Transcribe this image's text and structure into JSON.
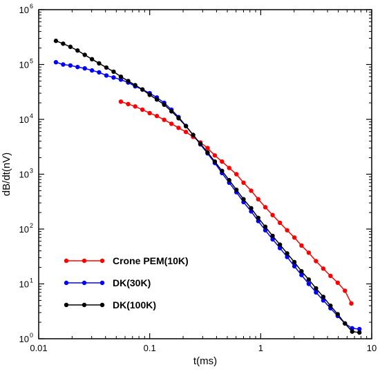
{
  "chart_data": {
    "type": "line",
    "xlabel": "t(ms)",
    "ylabel": "dB/dt(nV)",
    "xscale": "log",
    "yscale": "log",
    "xlim": [
      0.01,
      10
    ],
    "ylim": [
      1,
      1000000
    ],
    "x_ticks": [
      {
        "value": 0.01,
        "label": "0.01"
      },
      {
        "value": 0.1,
        "label": "0.1"
      },
      {
        "value": 1,
        "label": "1"
      },
      {
        "value": 10,
        "label": "10"
      }
    ],
    "y_ticks": [
      {
        "value": 1,
        "base": "10",
        "exp": "0"
      },
      {
        "value": 10,
        "base": "10",
        "exp": "1"
      },
      {
        "value": 100,
        "base": "10",
        "exp": "2"
      },
      {
        "value": 1000,
        "base": "10",
        "exp": "3"
      },
      {
        "value": 10000,
        "base": "10",
        "exp": "4"
      },
      {
        "value": 100000,
        "base": "10",
        "exp": "5"
      },
      {
        "value": 1000000,
        "base": "10",
        "exp": "6"
      }
    ],
    "grid": false,
    "legend_position": "bottom-left",
    "series": [
      {
        "name": "Crone PEM(10K)",
        "color": "#ff0000",
        "x": [
          0.055,
          0.064,
          0.074,
          0.086,
          0.1,
          0.116,
          0.135,
          0.157,
          0.182,
          0.212,
          0.246,
          0.286,
          0.332,
          0.386,
          0.448,
          0.52,
          0.604,
          0.7,
          0.82,
          0.95,
          1.1,
          1.28,
          1.49,
          1.73,
          2.01,
          2.33,
          2.71,
          3.15,
          3.66,
          4.25,
          4.94,
          5.74,
          6.55
        ],
        "y": [
          21000,
          19000,
          17200,
          15000,
          13000,
          11500,
          9800,
          8300,
          7000,
          5900,
          4800,
          3800,
          3000,
          2200,
          1700,
          1300,
          1000,
          700,
          500,
          350,
          250,
          180,
          130,
          95,
          70,
          50,
          37,
          26,
          19,
          14,
          10.5,
          7.5,
          4.4
        ]
      },
      {
        "name": "DK(30K)",
        "color": "#0000ff",
        "x": [
          0.0143,
          0.0166,
          0.0193,
          0.0224,
          0.026,
          0.0302,
          0.035,
          0.0407,
          0.0473,
          0.055,
          0.064,
          0.074,
          0.086,
          0.1,
          0.116,
          0.135,
          0.157,
          0.182,
          0.212,
          0.246,
          0.286,
          0.332,
          0.386,
          0.448,
          0.52,
          0.604,
          0.7,
          0.82,
          0.95,
          1.1,
          1.28,
          1.49,
          1.73,
          2.01,
          2.33,
          2.71,
          3.15,
          3.66,
          4.25,
          4.94,
          5.74,
          6.67,
          7.75
        ],
        "y": [
          110000,
          100000,
          96000,
          90000,
          85000,
          78000,
          72000,
          63000,
          58000,
          53000,
          47000,
          40000,
          35000,
          30000,
          25000,
          20000,
          15000,
          11000,
          7600,
          5200,
          3500,
          2400,
          1600,
          1050,
          700,
          470,
          310,
          210,
          140,
          95,
          65,
          45,
          31,
          21,
          14.5,
          10,
          7,
          5,
          3.6,
          2.6,
          1.9,
          1.55,
          1.5
        ]
      },
      {
        "name": "DK(100K)",
        "color": "#000000",
        "x": [
          0.0143,
          0.0166,
          0.0193,
          0.0224,
          0.026,
          0.0302,
          0.035,
          0.0407,
          0.0473,
          0.055,
          0.064,
          0.074,
          0.086,
          0.1,
          0.116,
          0.135,
          0.157,
          0.182,
          0.212,
          0.246,
          0.286,
          0.332,
          0.386,
          0.448,
          0.52,
          0.604,
          0.7,
          0.82,
          0.95,
          1.1,
          1.28,
          1.49,
          1.73,
          2.01,
          2.33,
          2.71,
          3.15,
          3.66,
          4.25,
          4.94,
          5.74,
          6.67,
          7.75
        ],
        "y": [
          270000,
          240000,
          210000,
          180000,
          150000,
          125000,
          105000,
          88000,
          74000,
          60000,
          50000,
          42000,
          35000,
          28000,
          23000,
          18500,
          14000,
          10500,
          7500,
          5200,
          3600,
          2500,
          1700,
          1150,
          780,
          520,
          350,
          240,
          160,
          110,
          75,
          52,
          36,
          25,
          17,
          12,
          8.3,
          5.8,
          4.0,
          2.8,
          1.9,
          1.35,
          1.3
        ]
      }
    ]
  }
}
